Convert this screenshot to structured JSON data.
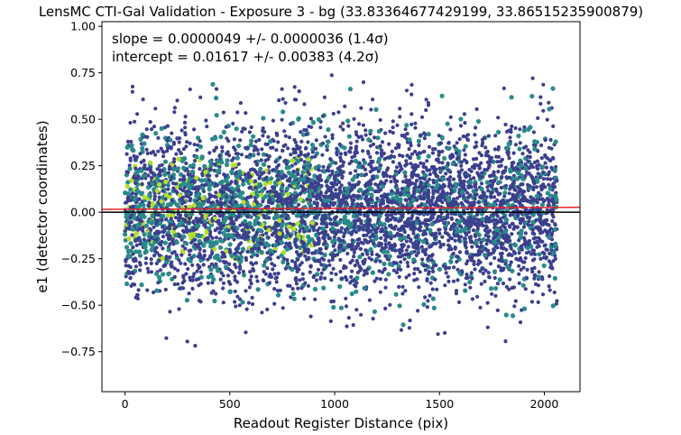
{
  "chart_data": {
    "type": "scatter",
    "title": "LensMC CTI-Gal Validation - Exposure 3 - bg (33.83364677429199, 33.86515235900879)",
    "xlabel": "Readout Register Distance (pix)",
    "ylabel": "e1 (detector coordinates)",
    "xlim": [
      -110,
      2170
    ],
    "ylim": [
      -0.965,
      1.025
    ],
    "xticks": [
      0,
      500,
      1000,
      1500,
      2000
    ],
    "xtick_labels": [
      "0",
      "500",
      "1000",
      "1500",
      "2000"
    ],
    "yticks": [
      1.0,
      0.75,
      0.5,
      0.25,
      0.0,
      -0.25,
      -0.5,
      -0.75
    ],
    "ytick_labels": [
      "1.00",
      "0.75",
      "0.50",
      "0.25",
      "0.00",
      "−0.25",
      "−0.50",
      "−0.75"
    ],
    "grid": false,
    "annotations": [
      "slope = 0.0000049 +/- 0.0000036 (1.4σ)",
      "intercept = 0.01617 +/- 0.00383 (4.2σ)"
    ],
    "fit_line": {
      "slope": 4.9e-06,
      "intercept": 0.01617,
      "color": "#e8242b"
    },
    "zero_line": {
      "y": 0.0,
      "color": "#000000"
    },
    "points": {
      "x_range": [
        0,
        2060
      ],
      "y_center": 0.02,
      "y_spread": 0.22,
      "y_extent": [
        -0.87,
        0.93
      ],
      "colormap": "viridis",
      "color_dark": "#3b3f8c",
      "color_mid": "#2a8a8a",
      "color_bright": "#b5de2b"
    }
  }
}
